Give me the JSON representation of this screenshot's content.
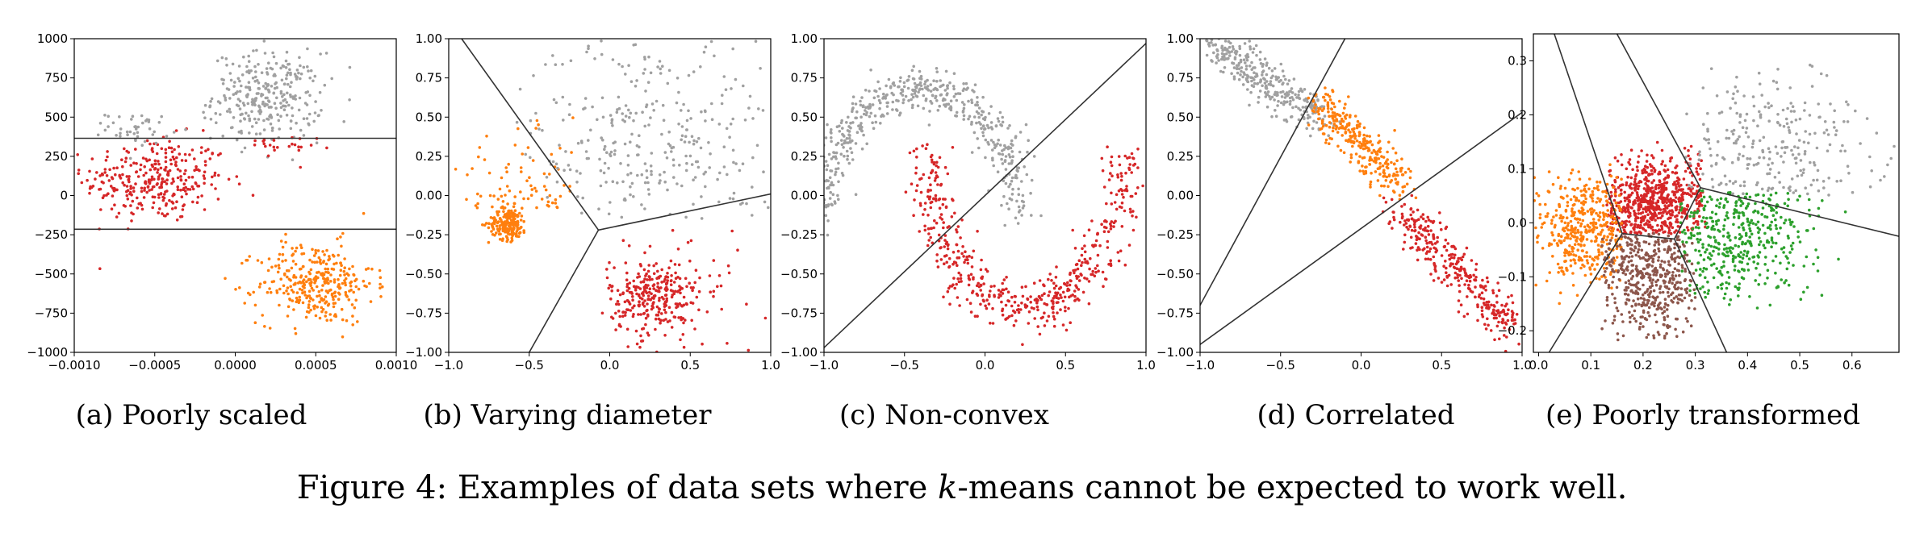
{
  "figure": {
    "caption": {
      "prefix": "Figure 4: Examples of data sets where ",
      "k": "k",
      "suffix": "-means cannot be expected to work well."
    }
  },
  "colors": {
    "gray": "#a0a0a0",
    "red": "#d62728",
    "orange": "#ff7f0e",
    "green": "#2ca02c",
    "brown": "#8c564b",
    "line": "#333333"
  },
  "chart_data": [
    {
      "id": "a",
      "type": "scatter",
      "caption": "(a) Poorly scaled",
      "title": "",
      "xlabel": "",
      "ylabel": "",
      "xlim": [
        -0.001,
        0.001
      ],
      "ylim": [
        -1000,
        1000
      ],
      "xticks": [
        -0.001,
        -0.0005,
        0.0,
        0.0005,
        0.001
      ],
      "xtick_labels": [
        "−0.0010",
        "−0.0005",
        "0.0000",
        "0.0005",
        "0.0010"
      ],
      "yticks": [
        -1000,
        -750,
        -500,
        -250,
        0,
        250,
        500,
        750,
        1000
      ],
      "ytick_labels": [
        "−1000",
        "−750",
        "−500",
        "−250",
        "0",
        "250",
        "500",
        "750",
        "1000"
      ],
      "clusters": [
        {
          "color": "red",
          "n": 320,
          "mean": [
            -0.0005,
            100
          ],
          "sd": [
            0.00022,
            135
          ]
        },
        {
          "color": "gray",
          "n": 300,
          "mean": [
            0.0002,
            630
          ],
          "sd": [
            0.00017,
            140
          ]
        },
        {
          "color": "gray",
          "n": 45,
          "mean": [
            -0.0006,
            430
          ],
          "sd": [
            0.0001,
            50
          ]
        },
        {
          "color": "red",
          "n": 25,
          "mean": [
            0.0002,
            300
          ],
          "sd": [
            0.00015,
            40
          ]
        },
        {
          "color": "orange",
          "n": 330,
          "mean": [
            0.0005,
            -560
          ],
          "sd": [
            0.00018,
            130
          ]
        }
      ],
      "boundaries": [
        [
          [
            -0.001,
            365
          ],
          [
            0.001,
            365
          ]
        ],
        [
          [
            -0.001,
            -215
          ],
          [
            0.001,
            -215
          ]
        ]
      ]
    },
    {
      "id": "b",
      "type": "scatter",
      "caption": "(b) Varying diameter",
      "title": "",
      "xlabel": "",
      "ylabel": "",
      "xlim": [
        -1.0,
        1.0
      ],
      "ylim": [
        -1.0,
        1.0
      ],
      "xticks": [
        -1.0,
        -0.5,
        0.0,
        0.5,
        1.0
      ],
      "xtick_labels": [
        "−1.0",
        "−0.5",
        "0.0",
        "0.5",
        "1.0"
      ],
      "yticks": [
        -1.0,
        -0.75,
        -0.5,
        -0.25,
        0.0,
        0.25,
        0.5,
        0.75,
        1.0
      ],
      "ytick_labels": [
        "−1.00",
        "−0.75",
        "−0.50",
        "−0.25",
        "0.00",
        "0.25",
        "0.50",
        "0.75",
        "1.00"
      ],
      "clusters": [
        {
          "color": "orange",
          "n": 200,
          "mean": [
            -0.63,
            -0.18
          ],
          "sd": [
            0.06,
            0.05
          ]
        },
        {
          "color": "orange",
          "n": 80,
          "mean": [
            -0.5,
            -0.15
          ],
          "sd": [
            0.25,
            0.25
          ],
          "region": [
            [
              -1,
              -0.22
            ],
            [
              -0.08,
              0.5
            ]
          ]
        },
        {
          "color": "gray",
          "n": 300,
          "mean": [
            0.25,
            0.35
          ],
          "sd": [
            0.4,
            0.35
          ],
          "region": [
            [
              -0.6,
              1
            ],
            [
              -0.15,
              1
            ]
          ]
        },
        {
          "color": "red",
          "n": 280,
          "mean": [
            0.28,
            -0.65
          ],
          "sd": [
            0.14,
            0.12
          ]
        },
        {
          "color": "red",
          "n": 40,
          "mean": [
            0.4,
            -0.5
          ],
          "sd": [
            0.3,
            0.25
          ],
          "region": [
            [
              -0.05,
              1
            ],
            [
              -1,
              -0.2
            ]
          ]
        }
      ],
      "boundaries": [
        [
          [
            -0.07,
            -0.22
          ],
          [
            -0.92,
            1.0
          ]
        ],
        [
          [
            -0.07,
            -0.22
          ],
          [
            1.0,
            0.01
          ]
        ],
        [
          [
            -0.07,
            -0.22
          ],
          [
            -0.5,
            -1.0
          ]
        ]
      ]
    },
    {
      "id": "c",
      "type": "scatter",
      "caption": "(c) Non-convex",
      "title": "",
      "xlabel": "",
      "ylabel": "",
      "xlim": [
        -1.0,
        1.0
      ],
      "ylim": [
        -1.0,
        1.0
      ],
      "xticks": [
        -1.0,
        -0.5,
        0.0,
        0.5,
        1.0
      ],
      "xtick_labels": [
        "−1.0",
        "−0.5",
        "0.0",
        "0.5",
        "1.0"
      ],
      "yticks": [
        -1.0,
        -0.75,
        -0.5,
        -0.25,
        0.0,
        0.25,
        0.5,
        0.75,
        1.0
      ],
      "ytick_labels": [
        "−1.00",
        "−0.75",
        "−0.50",
        "−0.25",
        "0.00",
        "0.25",
        "0.50",
        "0.75",
        "1.00"
      ],
      "moons": [
        {
          "color": "gray",
          "n": 520,
          "center": [
            -0.4,
            -0.12
          ],
          "r": [
            0.6,
            0.8
          ],
          "a0": 0,
          "a1": 3.14159,
          "noise": 0.07
        },
        {
          "color": "red",
          "n": 520,
          "center": [
            0.25,
            0.28
          ],
          "r": [
            0.6,
            1.0
          ],
          "a0": 3.14159,
          "a1": 6.28318,
          "noise": 0.07
        }
      ],
      "boundaries": [
        [
          [
            -1.0,
            -0.97
          ],
          [
            1.0,
            0.97
          ]
        ]
      ]
    },
    {
      "id": "d",
      "type": "scatter",
      "caption": "(d) Correlated",
      "title": "",
      "xlabel": "",
      "ylabel": "",
      "xlim": [
        -1.0,
        1.0
      ],
      "ylim": [
        -1.0,
        1.0
      ],
      "xticks": [
        -1.0,
        -0.5,
        0.0,
        0.5,
        1.0
      ],
      "xtick_labels": [
        "−1.0",
        "−0.5",
        "0.0",
        "0.5",
        "1.0"
      ],
      "yticks": [
        -1.0,
        -0.75,
        -0.5,
        -0.25,
        0.0,
        0.25,
        0.5,
        0.75,
        1.0
      ],
      "ytick_labels": [
        "−1.00",
        "−0.75",
        "−0.50",
        "−0.25",
        "0.00",
        "0.25",
        "0.50",
        "0.75",
        "1.00"
      ],
      "segments": [
        {
          "color": "gray",
          "n": 320,
          "from": [
            -0.95,
            0.98
          ],
          "to": [
            -0.22,
            0.47
          ],
          "width": 0.06
        },
        {
          "color": "orange",
          "n": 300,
          "from": [
            -0.25,
            0.6
          ],
          "to": [
            0.25,
            0.06
          ],
          "width": 0.06
        },
        {
          "color": "red",
          "n": 330,
          "from": [
            0.25,
            -0.1
          ],
          "to": [
            0.95,
            -0.85
          ],
          "width": 0.06
        }
      ],
      "boundaries": [
        [
          [
            -1.0,
            -0.7
          ],
          [
            -0.1,
            1.0
          ]
        ],
        [
          [
            -1.0,
            -0.95
          ],
          [
            1.0,
            0.53
          ]
        ]
      ]
    },
    {
      "id": "e",
      "type": "scatter",
      "caption": "(e) Poorly transformed",
      "title": "",
      "xlabel": "",
      "ylabel": "",
      "xlim": [
        -0.01,
        0.69
      ],
      "ylim": [
        -0.24,
        0.35
      ],
      "xticks": [
        0.0,
        0.1,
        0.2,
        0.3,
        0.4,
        0.5,
        0.6
      ],
      "xtick_labels": [
        "0.0",
        "0.1",
        "0.2",
        "0.3",
        "0.4",
        "0.5",
        "0.6"
      ],
      "yticks": [
        -0.2,
        -0.1,
        0.0,
        0.1,
        0.2,
        0.3
      ],
      "ytick_labels": [
        "−0.2",
        "−0.1",
        "0.0",
        "0.1",
        "0.2",
        "0.3"
      ],
      "clusters": [
        {
          "color": "red",
          "n": 650,
          "mean": [
            0.22,
            0.03
          ],
          "sd": [
            0.06,
            0.045
          ],
          "region": [
            [
              0.13,
              0.32
            ],
            [
              -0.02,
              0.15
            ]
          ]
        },
        {
          "color": "orange",
          "n": 420,
          "mean": [
            0.09,
            -0.01
          ],
          "sd": [
            0.05,
            0.05
          ],
          "region": [
            [
              -0.01,
              0.16
            ],
            [
              -0.15,
              0.12
            ]
          ]
        },
        {
          "color": "brown",
          "n": 480,
          "mean": [
            0.21,
            -0.09
          ],
          "sd": [
            0.05,
            0.06
          ],
          "region": [
            [
              0.12,
              0.3
            ],
            [
              -0.22,
              -0.02
            ]
          ]
        },
        {
          "color": "green",
          "n": 420,
          "mean": [
            0.38,
            -0.02
          ],
          "sd": [
            0.07,
            0.06
          ],
          "region": [
            [
              0.27,
              0.6
            ],
            [
              -0.16,
              0.06
            ]
          ]
        },
        {
          "color": "gray",
          "n": 260,
          "mean": [
            0.45,
            0.14
          ],
          "sd": [
            0.1,
            0.07
          ],
          "region": [
            [
              0.28,
              0.69
            ],
            [
              0.05,
              0.3
            ]
          ]
        }
      ],
      "boundaries": [
        [
          [
            0.16,
            -0.02
          ],
          [
            0.03,
            0.35
          ]
        ],
        [
          [
            0.16,
            -0.02
          ],
          [
            0.02,
            -0.24
          ]
        ],
        [
          [
            0.16,
            -0.02
          ],
          [
            0.26,
            -0.03
          ]
        ],
        [
          [
            0.26,
            -0.03
          ],
          [
            0.31,
            0.065
          ]
        ],
        [
          [
            0.26,
            -0.03
          ],
          [
            0.36,
            -0.24
          ]
        ],
        [
          [
            0.31,
            0.065
          ],
          [
            0.15,
            0.35
          ]
        ],
        [
          [
            0.31,
            0.065
          ],
          [
            0.69,
            -0.025
          ]
        ]
      ]
    }
  ]
}
